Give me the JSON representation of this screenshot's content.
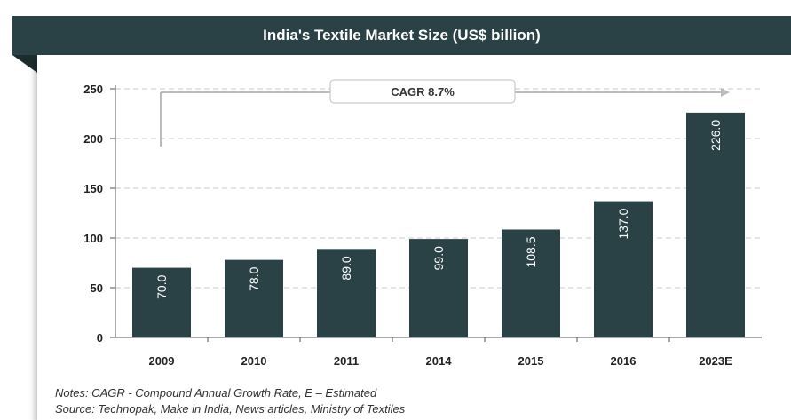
{
  "header": {
    "title": "India's Textile Market Size (US$ billion)"
  },
  "chart_data": {
    "type": "bar",
    "categories": [
      "2009",
      "2010",
      "2011",
      "2014",
      "2015",
      "2016",
      "2023E"
    ],
    "values": [
      70.0,
      78.0,
      89.0,
      99.0,
      108.5,
      137.0,
      226.0
    ],
    "value_labels": [
      "70.0",
      "78.0",
      "89.0",
      "99.0",
      "108.5",
      "137.0",
      "226.0"
    ],
    "yticks": [
      0,
      50,
      100,
      150,
      200,
      250
    ],
    "ylim": [
      0,
      250
    ],
    "grid": true,
    "annotation": "CAGR 8.7%",
    "colors": {
      "bar": "#2a4246",
      "header": "#2a4246",
      "grid": "#c8c8c8"
    }
  },
  "notes": {
    "line1": "Notes: CAGR - Compound  Annual  Growth Rate, E – Estimated",
    "line2": "Source:  Technopak,  Make in India,  News articles, Ministry of Textiles"
  }
}
